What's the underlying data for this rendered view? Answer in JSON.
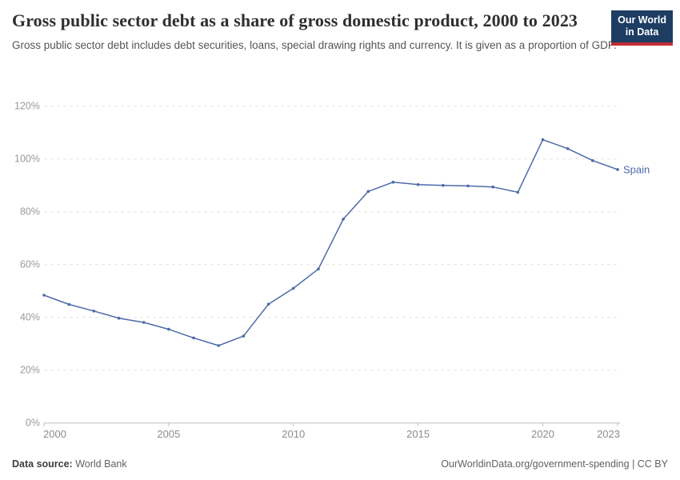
{
  "header": {
    "title": "Gross public sector debt as a share of gross domestic product, 2000 to 2023",
    "subtitle": "Gross public sector debt includes debt securities, loans, special drawing rights and currency. It is given as a proportion of GDP.",
    "logo": {
      "line1": "Our World",
      "line2": "in Data",
      "bg_color": "#1d3d63",
      "accent_color": "#c12d35"
    }
  },
  "chart_data": {
    "type": "line",
    "title": "Gross public sector debt as a share of gross domestic product, 2000 to 2023",
    "xlabel": "",
    "ylabel": "",
    "xlim": [
      2000,
      2023
    ],
    "ylim": [
      0,
      120
    ],
    "grid": "horizontal-dashed",
    "legend_position": "line-end",
    "x_ticks": [
      2000,
      2005,
      2010,
      2015,
      2020,
      2023
    ],
    "y_ticks": [
      0,
      20,
      40,
      60,
      80,
      100,
      120
    ],
    "y_suffix": "%",
    "series": [
      {
        "name": "Spain",
        "color": "#4c6ba8",
        "x": [
          2000,
          2001,
          2002,
          2003,
          2004,
          2005,
          2006,
          2007,
          2008,
          2009,
          2010,
          2011,
          2012,
          2013,
          2014,
          2015,
          2016,
          2017,
          2018,
          2019,
          2020,
          2021,
          2022,
          2023
        ],
        "values": [
          48.4,
          44.9,
          42.4,
          39.7,
          38.1,
          35.5,
          32.2,
          29.3,
          32.9,
          45.0,
          51.0,
          58.3,
          77.2,
          87.7,
          91.2,
          90.3,
          90.0,
          89.8,
          89.4,
          87.4,
          107.3,
          103.9,
          99.4,
          96.0
        ]
      }
    ]
  },
  "footer": {
    "source_label": "Data source:",
    "source_value": "World Bank",
    "attribution": "OurWorldinData.org/government-spending | CC BY"
  }
}
